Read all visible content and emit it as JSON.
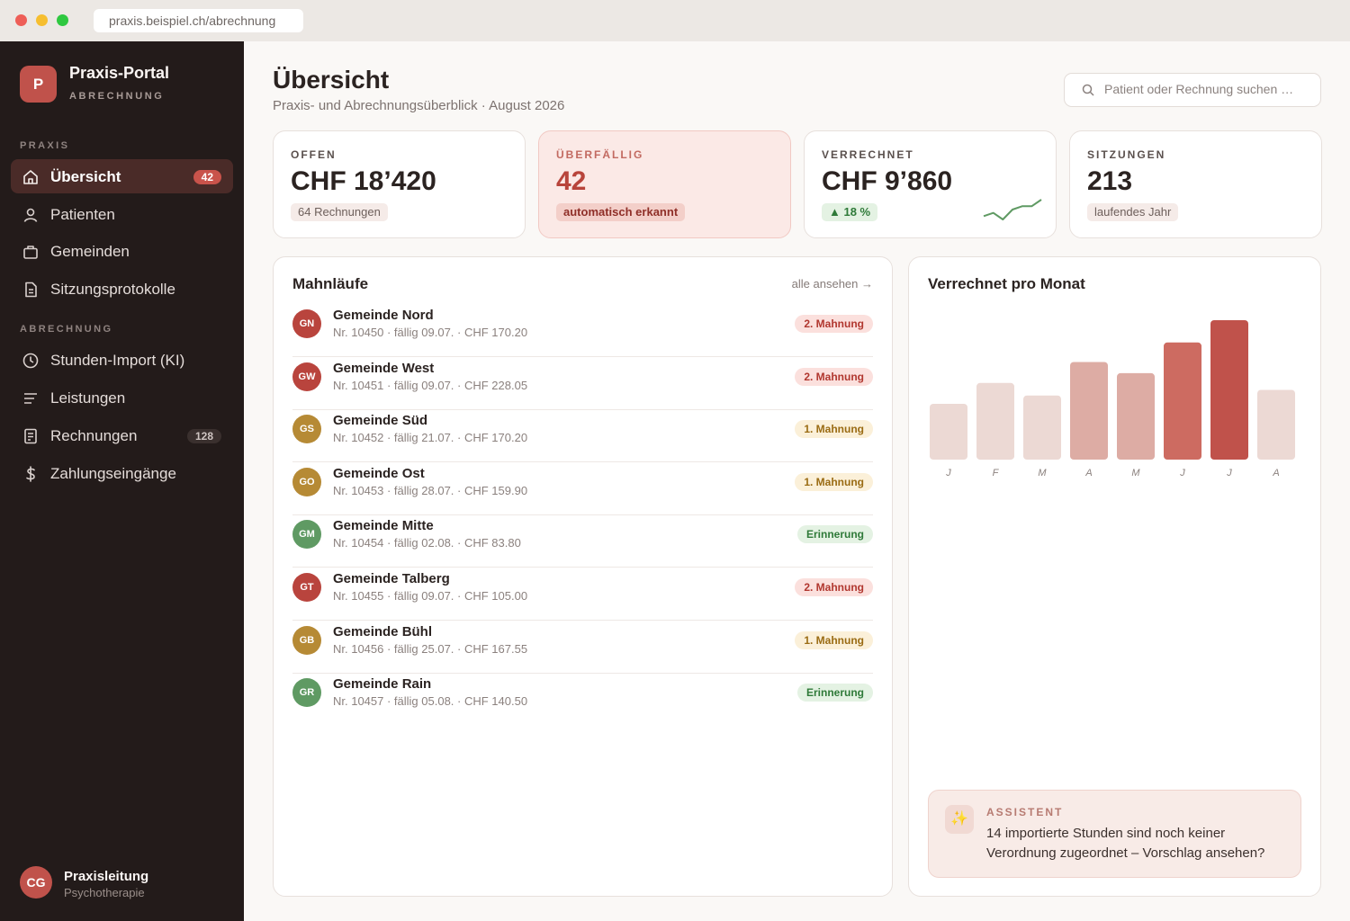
{
  "browser": {
    "url": "praxis.beispiel.ch/abrechnung"
  },
  "sidebar": {
    "brand": {
      "logo": "P",
      "name": "Praxis-Portal",
      "subtitle": "ABRECHNUNG"
    },
    "sections": [
      {
        "label": "PRAXIS",
        "items": [
          {
            "label": "Übersicht",
            "icon": "home-icon",
            "badge": "42",
            "active": true
          },
          {
            "label": "Patienten",
            "icon": "person-icon"
          },
          {
            "label": "Gemeinden",
            "icon": "briefcase-icon"
          },
          {
            "label": "Sitzungsprotokolle",
            "icon": "document-icon"
          }
        ]
      },
      {
        "label": "ABRECHNUNG",
        "items": [
          {
            "label": "Stunden-Import (KI)",
            "icon": "clock-icon"
          },
          {
            "label": "Leistungen",
            "icon": "lines-icon"
          },
          {
            "label": "Rechnungen",
            "icon": "invoice-icon",
            "badge": "128"
          },
          {
            "label": "Zahlungseingänge",
            "icon": "dollar-icon"
          }
        ]
      }
    ],
    "user": {
      "initials": "CG",
      "name": "Praxisleitung",
      "role": "Psychotherapie"
    }
  },
  "header": {
    "title": "Übersicht",
    "subtitle": "Praxis- und Abrechnungsüberblick · August 2026",
    "search_placeholder": "Patient oder Rechnung suchen …"
  },
  "stats": [
    {
      "label": "OFFEN",
      "value": "CHF 18’420",
      "pill": "64 Rechnungen"
    },
    {
      "label": "ÜBERFÄLLIG",
      "value": "42",
      "pill": "automatisch erkannt"
    },
    {
      "label": "VERRECHNET",
      "value": "CHF 9’860",
      "pill": "▲ 18 %",
      "trend": [
        3,
        4,
        2,
        5,
        6,
        6,
        8
      ]
    },
    {
      "label": "SITZUNGEN",
      "value": "213",
      "pill": "laufendes Jahr"
    }
  ],
  "dunning": {
    "title": "Mahnläufe",
    "see_all": "alle ansehen →",
    "rows": [
      {
        "initials": "GN",
        "name": "Gemeinde Nord",
        "meta": "Nr. 10450 · fällig 09.07. · CHF 170.20",
        "status": "2. Mahnung",
        "level": "m2"
      },
      {
        "initials": "GW",
        "name": "Gemeinde West",
        "meta": "Nr. 10451 · fällig 09.07. · CHF 228.05",
        "status": "2. Mahnung",
        "level": "m2"
      },
      {
        "initials": "GS",
        "name": "Gemeinde Süd",
        "meta": "Nr. 10452 · fällig 21.07. · CHF 170.20",
        "status": "1. Mahnung",
        "level": "m1"
      },
      {
        "initials": "GO",
        "name": "Gemeinde Ost",
        "meta": "Nr. 10453 · fällig 28.07. · CHF 159.90",
        "status": "1. Mahnung",
        "level": "m1"
      },
      {
        "initials": "GM",
        "name": "Gemeinde Mitte",
        "meta": "Nr. 10454 · fällig 02.08. · CHF 83.80",
        "status": "Erinnerung",
        "level": "er"
      },
      {
        "initials": "GT",
        "name": "Gemeinde Talberg",
        "meta": "Nr. 10455 · fällig 09.07. · CHF 105.00",
        "status": "2. Mahnung",
        "level": "m2"
      },
      {
        "initials": "GB",
        "name": "Gemeinde Bühl",
        "meta": "Nr. 10456 · fällig 25.07. · CHF 167.55",
        "status": "1. Mahnung",
        "level": "m1"
      },
      {
        "initials": "GR",
        "name": "Gemeinde Rain",
        "meta": "Nr. 10457 · fällig 05.08. · CHF 140.50",
        "status": "Erinnerung",
        "level": "er"
      }
    ]
  },
  "chart_panel": {
    "title": "Verrechnet pro Monat"
  },
  "chart_data": {
    "type": "bar",
    "title": "Verrechnet pro Monat",
    "categories": [
      "J",
      "F",
      "M",
      "A",
      "M",
      "J",
      "J",
      "A"
    ],
    "values": [
      40,
      55,
      46,
      70,
      62,
      84,
      100,
      50
    ],
    "ylim": [
      0,
      100
    ],
    "grid": false,
    "bar_colors": [
      "#ecd9d4",
      "#ecd9d4",
      "#ecd9d4",
      "#ddaca4",
      "#ddaca4",
      "#cd6b61",
      "#c0524b",
      "#ecd9d4"
    ]
  },
  "assistant": {
    "label": "ASSISTENT",
    "icon": "sparkles-icon",
    "text": "14 importierte Stunden sind noch keiner Verordnung zugeordnet – Vorschlag ansehen?"
  },
  "colors": {
    "accent": "#c0524b",
    "sidebar_bg": "#231b1a",
    "avatar_red": "#b9443d",
    "avatar_gold": "#b68a35",
    "avatar_green": "#5f9a63"
  }
}
